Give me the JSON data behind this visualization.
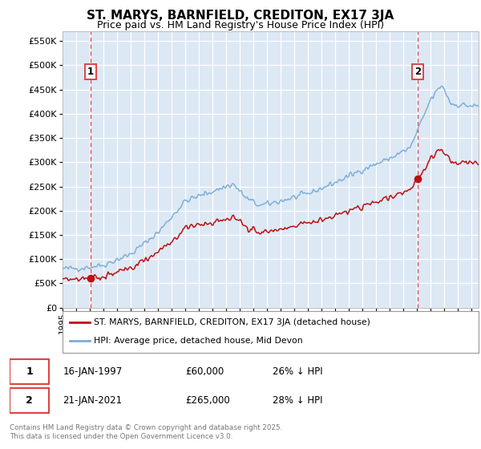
{
  "title": "ST. MARYS, BARNFIELD, CREDITON, EX17 3JA",
  "subtitle": "Price paid vs. HM Land Registry's House Price Index (HPI)",
  "ytick_values": [
    0,
    50000,
    100000,
    150000,
    200000,
    250000,
    300000,
    350000,
    400000,
    450000,
    500000,
    550000
  ],
  "ylim": [
    0,
    570000
  ],
  "xlim_start": 1995.0,
  "xlim_end": 2025.5,
  "hpi_color": "#7aadd4",
  "price_color": "#bb1111",
  "vline_color": "#dd4444",
  "sale1_x": 1997.04,
  "sale1_y": 60000,
  "sale2_x": 2021.05,
  "sale2_y": 265000,
  "legend_line1": "ST. MARYS, BARNFIELD, CREDITON, EX17 3JA (detached house)",
  "legend_line2": "HPI: Average price, detached house, Mid Devon",
  "note1_date": "16-JAN-1997",
  "note1_price": "£60,000",
  "note1_hpi": "26% ↓ HPI",
  "note2_date": "21-JAN-2021",
  "note2_price": "£265,000",
  "note2_hpi": "28% ↓ HPI",
  "footer": "Contains HM Land Registry data © Crown copyright and database right 2025.\nThis data is licensed under the Open Government Licence v3.0.",
  "plot_bg_color": "#dde8f5",
  "grid_color": "#ffffff",
  "title_fontsize": 11,
  "subtitle_fontsize": 9
}
